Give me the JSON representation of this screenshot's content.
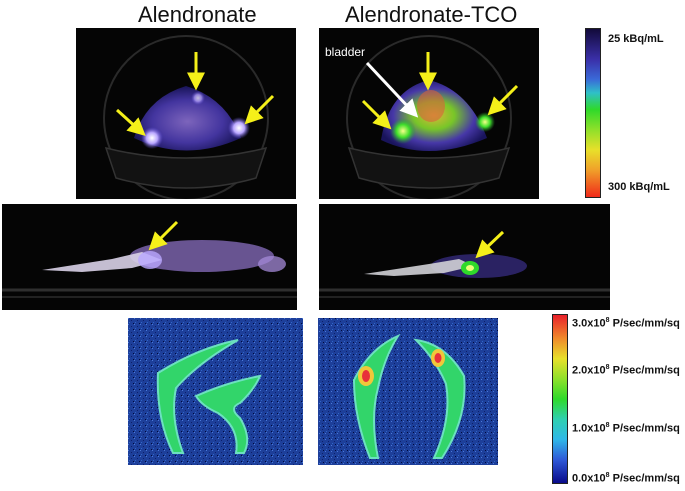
{
  "titles": {
    "left": "Alendronate",
    "right": "Alendronate-TCO"
  },
  "annotations": {
    "bladder_label": "bladder"
  },
  "pet_scale": {
    "top_label": "25 kBq/mL",
    "bottom_label": "300 kBq/mL"
  },
  "optical_scale": {
    "mantissas": [
      "3.0x10",
      "2.0x10",
      "1.0x10",
      "0.0x10"
    ],
    "exponent": "8",
    "unit": " P/sec/mm/sq"
  },
  "colors": {
    "arrow": "#f5f019",
    "background": "#050505",
    "optical_bg": "#1d3f9a"
  }
}
